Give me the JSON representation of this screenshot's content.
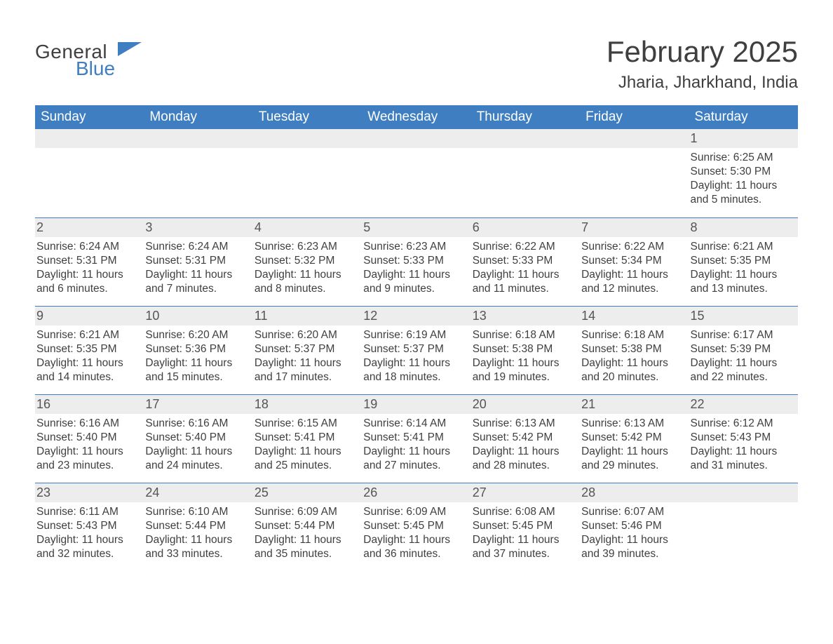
{
  "logo": {
    "general": "General",
    "blue": "Blue",
    "flag_color": "#3f7fc1"
  },
  "title": "February 2025",
  "location": "Jharia, Jharkhand, India",
  "colors": {
    "header_bg": "#3f7fc1",
    "header_text": "#ffffff",
    "strip_bg": "#ededed",
    "rule": "#3f7fc1",
    "body_text": "#3f3f3f",
    "page_bg": "#ffffff"
  },
  "font": {
    "family": "Arial, Helvetica, sans-serif",
    "title_pt": 42,
    "location_pt": 24,
    "weekday_pt": 19,
    "cell_pt": 15.5,
    "daynum_pt": 18
  },
  "weekdays": [
    "Sunday",
    "Monday",
    "Tuesday",
    "Wednesday",
    "Thursday",
    "Friday",
    "Saturday"
  ],
  "weeks": [
    [
      null,
      null,
      null,
      null,
      null,
      null,
      {
        "n": "1",
        "sunrise": "Sunrise: 6:25 AM",
        "sunset": "Sunset: 5:30 PM",
        "daylight": "Daylight: 11 hours and 5 minutes."
      }
    ],
    [
      {
        "n": "2",
        "sunrise": "Sunrise: 6:24 AM",
        "sunset": "Sunset: 5:31 PM",
        "daylight": "Daylight: 11 hours and 6 minutes."
      },
      {
        "n": "3",
        "sunrise": "Sunrise: 6:24 AM",
        "sunset": "Sunset: 5:31 PM",
        "daylight": "Daylight: 11 hours and 7 minutes."
      },
      {
        "n": "4",
        "sunrise": "Sunrise: 6:23 AM",
        "sunset": "Sunset: 5:32 PM",
        "daylight": "Daylight: 11 hours and 8 minutes."
      },
      {
        "n": "5",
        "sunrise": "Sunrise: 6:23 AM",
        "sunset": "Sunset: 5:33 PM",
        "daylight": "Daylight: 11 hours and 9 minutes."
      },
      {
        "n": "6",
        "sunrise": "Sunrise: 6:22 AM",
        "sunset": "Sunset: 5:33 PM",
        "daylight": "Daylight: 11 hours and 11 minutes."
      },
      {
        "n": "7",
        "sunrise": "Sunrise: 6:22 AM",
        "sunset": "Sunset: 5:34 PM",
        "daylight": "Daylight: 11 hours and 12 minutes."
      },
      {
        "n": "8",
        "sunrise": "Sunrise: 6:21 AM",
        "sunset": "Sunset: 5:35 PM",
        "daylight": "Daylight: 11 hours and 13 minutes."
      }
    ],
    [
      {
        "n": "9",
        "sunrise": "Sunrise: 6:21 AM",
        "sunset": "Sunset: 5:35 PM",
        "daylight": "Daylight: 11 hours and 14 minutes."
      },
      {
        "n": "10",
        "sunrise": "Sunrise: 6:20 AM",
        "sunset": "Sunset: 5:36 PM",
        "daylight": "Daylight: 11 hours and 15 minutes."
      },
      {
        "n": "11",
        "sunrise": "Sunrise: 6:20 AM",
        "sunset": "Sunset: 5:37 PM",
        "daylight": "Daylight: 11 hours and 17 minutes."
      },
      {
        "n": "12",
        "sunrise": "Sunrise: 6:19 AM",
        "sunset": "Sunset: 5:37 PM",
        "daylight": "Daylight: 11 hours and 18 minutes."
      },
      {
        "n": "13",
        "sunrise": "Sunrise: 6:18 AM",
        "sunset": "Sunset: 5:38 PM",
        "daylight": "Daylight: 11 hours and 19 minutes."
      },
      {
        "n": "14",
        "sunrise": "Sunrise: 6:18 AM",
        "sunset": "Sunset: 5:38 PM",
        "daylight": "Daylight: 11 hours and 20 minutes."
      },
      {
        "n": "15",
        "sunrise": "Sunrise: 6:17 AM",
        "sunset": "Sunset: 5:39 PM",
        "daylight": "Daylight: 11 hours and 22 minutes."
      }
    ],
    [
      {
        "n": "16",
        "sunrise": "Sunrise: 6:16 AM",
        "sunset": "Sunset: 5:40 PM",
        "daylight": "Daylight: 11 hours and 23 minutes."
      },
      {
        "n": "17",
        "sunrise": "Sunrise: 6:16 AM",
        "sunset": "Sunset: 5:40 PM",
        "daylight": "Daylight: 11 hours and 24 minutes."
      },
      {
        "n": "18",
        "sunrise": "Sunrise: 6:15 AM",
        "sunset": "Sunset: 5:41 PM",
        "daylight": "Daylight: 11 hours and 25 minutes."
      },
      {
        "n": "19",
        "sunrise": "Sunrise: 6:14 AM",
        "sunset": "Sunset: 5:41 PM",
        "daylight": "Daylight: 11 hours and 27 minutes."
      },
      {
        "n": "20",
        "sunrise": "Sunrise: 6:13 AM",
        "sunset": "Sunset: 5:42 PM",
        "daylight": "Daylight: 11 hours and 28 minutes."
      },
      {
        "n": "21",
        "sunrise": "Sunrise: 6:13 AM",
        "sunset": "Sunset: 5:42 PM",
        "daylight": "Daylight: 11 hours and 29 minutes."
      },
      {
        "n": "22",
        "sunrise": "Sunrise: 6:12 AM",
        "sunset": "Sunset: 5:43 PM",
        "daylight": "Daylight: 11 hours and 31 minutes."
      }
    ],
    [
      {
        "n": "23",
        "sunrise": "Sunrise: 6:11 AM",
        "sunset": "Sunset: 5:43 PM",
        "daylight": "Daylight: 11 hours and 32 minutes."
      },
      {
        "n": "24",
        "sunrise": "Sunrise: 6:10 AM",
        "sunset": "Sunset: 5:44 PM",
        "daylight": "Daylight: 11 hours and 33 minutes."
      },
      {
        "n": "25",
        "sunrise": "Sunrise: 6:09 AM",
        "sunset": "Sunset: 5:44 PM",
        "daylight": "Daylight: 11 hours and 35 minutes."
      },
      {
        "n": "26",
        "sunrise": "Sunrise: 6:09 AM",
        "sunset": "Sunset: 5:45 PM",
        "daylight": "Daylight: 11 hours and 36 minutes."
      },
      {
        "n": "27",
        "sunrise": "Sunrise: 6:08 AM",
        "sunset": "Sunset: 5:45 PM",
        "daylight": "Daylight: 11 hours and 37 minutes."
      },
      {
        "n": "28",
        "sunrise": "Sunrise: 6:07 AM",
        "sunset": "Sunset: 5:46 PM",
        "daylight": "Daylight: 11 hours and 39 minutes."
      },
      null
    ]
  ]
}
